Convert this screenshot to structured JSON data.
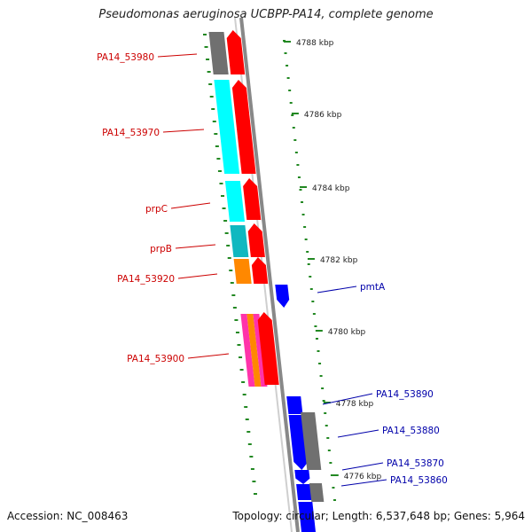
{
  "title": "Pseudomonas aeruginosa UCBPP-PA14, complete genome",
  "accession_text": "Accession: NC_008463",
  "topology_text": "Topology: circular; Length: 6,537,648 bp; Genes: 5,964",
  "colors": {
    "forward_default": "#ff0000",
    "reverse_default": "#0000ff",
    "label_forward": "#cc0000",
    "label_reverse": "#0000aa",
    "tick": "#228822",
    "strand_line": "#888888",
    "gray_gene": "#707070",
    "cyan": "#00ffff",
    "teal": "#10b8c0",
    "orange": "#ff8800",
    "magenta": "#ff33aa"
  },
  "scale_labels": [
    "4788 kbp",
    "4786 kbp",
    "4784 kbp",
    "4782 kbp",
    "4780 kbp",
    "4778 kbp",
    "4776 kbp"
  ],
  "forward_labels": [
    "PA14_53980",
    "PA14_53970",
    "prpC",
    "prpB",
    "PA14_53920",
    "PA14_53900"
  ],
  "reverse_labels": [
    "pmtA",
    "PA14_53890",
    "PA14_53880",
    "PA14_53870",
    "PA14_53860"
  ]
}
